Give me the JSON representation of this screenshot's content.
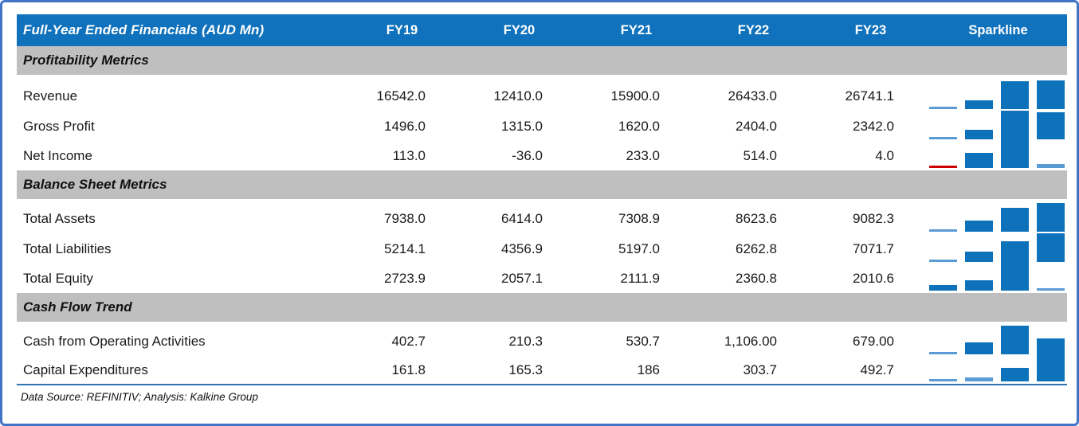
{
  "header": {
    "title": "Full-Year Ended Financials (AUD Mn)",
    "columns": [
      "FY19",
      "FY20",
      "FY21",
      "FY22",
      "FY23"
    ],
    "sparkline_label": "Sparkline"
  },
  "sections": [
    {
      "title": "Profitability Metrics",
      "rows": [
        {
          "label": "Revenue",
          "values": [
            "16542.0",
            "12410.0",
            "15900.0",
            "26433.0",
            "26741.1"
          ],
          "spark": [
            12410.0,
            15900.0,
            26433.0,
            26741.1
          ]
        },
        {
          "label": "Gross Profit",
          "values": [
            "1496.0",
            "1315.0",
            "1620.0",
            "2404.0",
            "2342.0"
          ],
          "spark": [
            1315.0,
            1620.0,
            2404.0,
            2342.0
          ]
        },
        {
          "label": "Net Income",
          "values": [
            "113.0",
            "-36.0",
            "233.0",
            "514.0",
            "4.0"
          ],
          "spark": [
            -36.0,
            233.0,
            514.0,
            4.0
          ]
        }
      ]
    },
    {
      "title": "Balance Sheet Metrics",
      "rows": [
        {
          "label": "Total Assets",
          "values": [
            "7938.0",
            "6414.0",
            "7308.9",
            "8623.6",
            "9082.3"
          ],
          "spark": [
            6414.0,
            7308.9,
            8623.6,
            9082.3
          ]
        },
        {
          "label": "Total Liabilities",
          "values": [
            "5214.1",
            "4356.9",
            "5197.0",
            "6262.8",
            "7071.7"
          ],
          "spark": [
            4356.9,
            5197.0,
            6262.8,
            7071.7
          ]
        },
        {
          "label": "Total Equity",
          "values": [
            "2723.9",
            "2057.1",
            "2111.9",
            "2360.8",
            "2010.6"
          ],
          "spark": [
            2057.1,
            2111.9,
            2360.8,
            2010.6
          ]
        }
      ]
    },
    {
      "title": "Cash Flow Trend",
      "rows": [
        {
          "label": "Cash from Operating Activities",
          "values": [
            "402.7",
            "210.3",
            "530.7",
            "1,106.00",
            "679.00"
          ],
          "spark": [
            210.3,
            530.7,
            1106.0,
            679.0
          ]
        },
        {
          "label": "Capital Expenditures",
          "values": [
            "161.8",
            "165.3",
            "186",
            "303.7",
            "492.7"
          ],
          "spark": [
            165.3,
            186.0,
            303.7,
            492.7
          ]
        }
      ]
    }
  ],
  "footer": {
    "source": "Data Source: REFINITIV; Analysis: Kalkine Group"
  },
  "colors": {
    "header_bg": "#1072bc",
    "header_text": "#ffffff",
    "section_band_bg": "#bfbfbf",
    "spark_bar": "#0e72ba",
    "spark_light": "#5b9bd5",
    "spark_negative": "#cc0000",
    "bottom_rule": "#2e75b6",
    "frame_border": "#4173c6"
  },
  "chart_data": {
    "type": "table",
    "title": "Full-Year Ended Financials (AUD Mn)",
    "columns": [
      "FY19",
      "FY20",
      "FY21",
      "FY22",
      "FY23"
    ],
    "rows": [
      {
        "section": "Profitability Metrics",
        "label": "Revenue",
        "values": [
          16542.0,
          12410.0,
          15900.0,
          26433.0,
          26741.1
        ]
      },
      {
        "section": "Profitability Metrics",
        "label": "Gross Profit",
        "values": [
          1496.0,
          1315.0,
          1620.0,
          2404.0,
          2342.0
        ]
      },
      {
        "section": "Profitability Metrics",
        "label": "Net Income",
        "values": [
          113.0,
          -36.0,
          233.0,
          514.0,
          4.0
        ]
      },
      {
        "section": "Balance Sheet Metrics",
        "label": "Total Assets",
        "values": [
          7938.0,
          6414.0,
          7308.9,
          8623.6,
          9082.3
        ]
      },
      {
        "section": "Balance Sheet Metrics",
        "label": "Total Liabilities",
        "values": [
          5214.1,
          4356.9,
          5197.0,
          6262.8,
          7071.7
        ]
      },
      {
        "section": "Balance Sheet Metrics",
        "label": "Total Equity",
        "values": [
          2723.9,
          2057.1,
          2111.9,
          2360.8,
          2010.6
        ]
      },
      {
        "section": "Cash Flow Trend",
        "label": "Cash from Operating Activities",
        "values": [
          402.7,
          210.3,
          530.7,
          1106.0,
          679.0
        ]
      },
      {
        "section": "Cash Flow Trend",
        "label": "Capital Expenditures",
        "values": [
          161.8,
          165.3,
          186.0,
          303.7,
          492.7
        ]
      }
    ],
    "sparklines": {
      "type": "bar",
      "note": "column sparkline per row, bars for FY20-FY23, scaled row min to max; row minimum drawn as hairline, negative values red"
    }
  }
}
